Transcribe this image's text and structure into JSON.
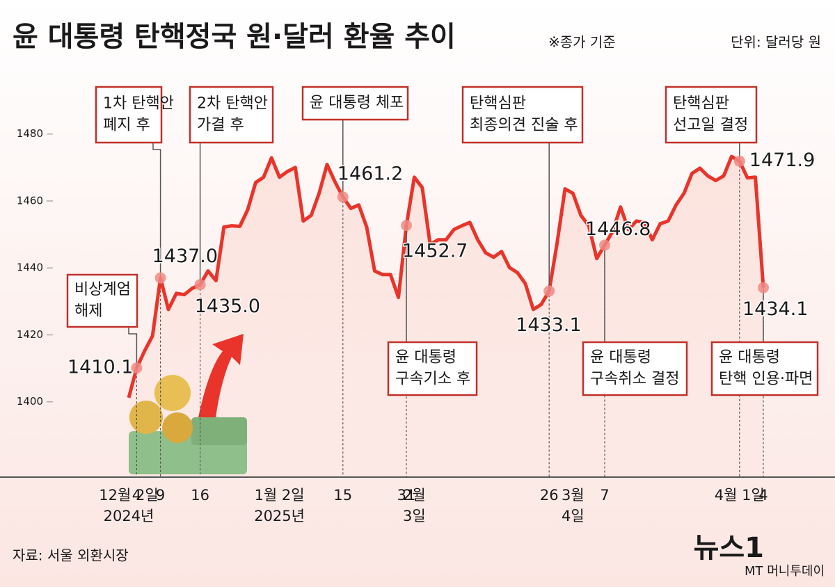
{
  "chart_data": {
    "type": "line",
    "title": "윤 대통령 탄핵정국 원·달러 환율 추이",
    "note": "※종가 기준",
    "unit": "단위: 달러당 원",
    "source": "자료: 서울 외환시장",
    "logo": "뉴스1",
    "watermark": "MT 머니투데이",
    "color": "#e8342a",
    "ylim": [
      1377.5,
      1490
    ],
    "yticks": [
      1400,
      1420,
      1440,
      1460,
      1480
    ],
    "categories": [
      "12월 2일",
      "4",
      null,
      null,
      "9",
      null,
      null,
      null,
      null,
      "16",
      null,
      null,
      null,
      null,
      null,
      null,
      null,
      null,
      null,
      "1월 2일",
      null,
      null,
      null,
      null,
      null,
      null,
      null,
      "15",
      null,
      null,
      null,
      null,
      null,
      null,
      null,
      "31",
      "2월",
      null,
      null,
      null,
      null,
      null,
      null,
      null,
      null,
      null,
      null,
      null,
      null,
      null,
      null,
      null,
      null,
      "26",
      null,
      null,
      "3월",
      null,
      null,
      null,
      "7",
      null,
      null,
      null,
      null,
      null,
      null,
      null,
      null,
      null,
      null,
      null,
      null,
      null,
      null,
      null,
      null,
      "4월 1일",
      null,
      null,
      "4"
    ],
    "category_sublabels": [
      "2024년",
      null,
      null,
      null,
      null,
      null,
      null,
      null,
      null,
      null,
      null,
      null,
      null,
      null,
      null,
      null,
      null,
      null,
      null,
      "2025년",
      null,
      null,
      null,
      null,
      null,
      null,
      null,
      null,
      null,
      null,
      null,
      null,
      null,
      null,
      null,
      null,
      "3일",
      null,
      null,
      null,
      null,
      null,
      null,
      null,
      null,
      null,
      null,
      null,
      null,
      null,
      null,
      null,
      null,
      null,
      null,
      null,
      "4일",
      null,
      null,
      null,
      null,
      null,
      null,
      null,
      null,
      null,
      null,
      null,
      null,
      null,
      null,
      null,
      null,
      null,
      null,
      null,
      null,
      null,
      null,
      null,
      null
    ],
    "values": [
      1401.2,
      1410.1,
      1415.2,
      1419.7,
      1437.0,
      1427.6,
      1432.4,
      1432.0,
      1433.9,
      1435.0,
      1439.1,
      1436.2,
      1452.2,
      1452.6,
      1452.4,
      1457.4,
      1465.5,
      1467.1,
      1472.9,
      1467.1,
      1468.8,
      1470.0,
      1454.0,
      1455.7,
      1462.3,
      1470.9,
      1465.7,
      1461.2,
      1457.8,
      1458.8,
      1452.2,
      1439.1,
      1438.0,
      1438.0,
      1431.2,
      1452.7,
      1467.1,
      1464.0,
      1447.0,
      1448.4,
      1448.4,
      1451.5,
      1452.6,
      1453.6,
      1448.4,
      1444.5,
      1443.2,
      1444.9,
      1440.1,
      1438.6,
      1435.3,
      1427.6,
      1429.1,
      1433.1,
      1447.4,
      1463.6,
      1462.3,
      1455.7,
      1452.6,
      1442.8,
      1446.8,
      1450.9,
      1458.2,
      1451.5,
      1454.0,
      1453.6,
      1448.4,
      1453.2,
      1454.0,
      1458.8,
      1462.3,
      1468.2,
      1469.8,
      1467.5,
      1466.1,
      1467.5,
      1473.3,
      1471.9,
      1466.9,
      1467.1,
      1434.1
    ],
    "value_labels": [
      null,
      "1410.1",
      null,
      null,
      "1437.0",
      null,
      null,
      null,
      null,
      "1435.0",
      null,
      null,
      null,
      null,
      null,
      null,
      null,
      null,
      null,
      null,
      null,
      null,
      null,
      null,
      null,
      null,
      null,
      "1461.2",
      null,
      null,
      null,
      null,
      null,
      null,
      null,
      "1452.7",
      null,
      null,
      null,
      null,
      null,
      null,
      null,
      null,
      null,
      null,
      null,
      null,
      null,
      null,
      null,
      null,
      null,
      "1433.1",
      null,
      null,
      null,
      null,
      null,
      null,
      "1446.8",
      null,
      null,
      null,
      null,
      null,
      null,
      null,
      null,
      null,
      null,
      null,
      null,
      null,
      null,
      null,
      null,
      "1471.9",
      null,
      null,
      "1434.1"
    ],
    "annotations": [
      {
        "index": 1,
        "text": [
          "비상계엄",
          "해제"
        ]
      },
      {
        "index": 4,
        "text": [
          "1차 탄핵안",
          "폐지 후"
        ]
      },
      {
        "index": 9,
        "text": [
          "2차 탄핵안",
          "가결 후"
        ]
      },
      {
        "index": 27,
        "text": [
          "윤 대통령 체포"
        ]
      },
      {
        "index": 53,
        "text": [
          "탄핵심판",
          "최종의견 진술 후"
        ]
      },
      {
        "index": 77,
        "text": [
          "탄핵심판",
          "선고일 결정"
        ]
      },
      {
        "index": 35,
        "text": [
          "윤 대통령",
          "구속기소 후"
        ]
      },
      {
        "index": 60,
        "text": [
          "윤 대통령",
          "구속취소 결정"
        ]
      },
      {
        "index": 80,
        "text": [
          "윤 대통령",
          "탄핵 인용·파면"
        ]
      }
    ]
  }
}
